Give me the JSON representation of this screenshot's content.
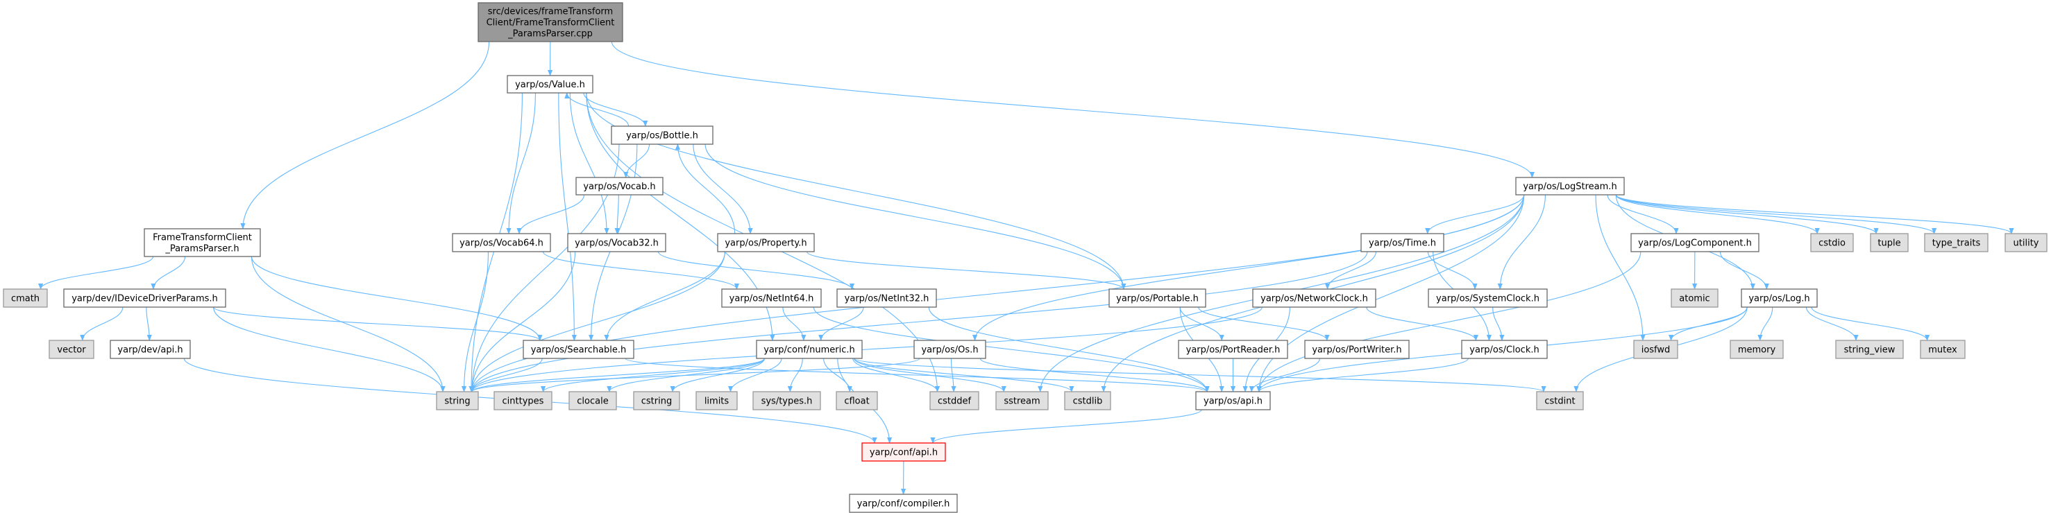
{
  "colors": {
    "edge": "#63b8ff",
    "root_fill": "#999999",
    "external_fill": "#e0e0e0",
    "error_border": "#ff0000",
    "error_fill": "#fff0f0"
  },
  "graph": {
    "nodes": [
      {
        "id": "cpp",
        "label": "src/devices/frameTransform\nClient/FrameTransformClient\n_ParamsParser.cpp",
        "kind": "root"
      },
      {
        "id": "value",
        "label": "yarp/os/Value.h",
        "kind": "normal"
      },
      {
        "id": "bottle",
        "label": "yarp/os/Bottle.h",
        "kind": "normal"
      },
      {
        "id": "vocab",
        "label": "yarp/os/Vocab.h",
        "kind": "normal"
      },
      {
        "id": "vocab64",
        "label": "yarp/os/Vocab64.h",
        "kind": "normal"
      },
      {
        "id": "vocab32",
        "label": "yarp/os/Vocab32.h",
        "kind": "normal"
      },
      {
        "id": "ftcph",
        "label": "FrameTransformClient\n_ParamsParser.h",
        "kind": "normal"
      },
      {
        "id": "cmath",
        "label": "cmath",
        "kind": "external"
      },
      {
        "id": "iddp",
        "label": "yarp/dev/IDeviceDriverParams.h",
        "kind": "normal"
      },
      {
        "id": "vector",
        "label": "vector",
        "kind": "external"
      },
      {
        "id": "devapi",
        "label": "yarp/dev/api.h",
        "kind": "normal"
      },
      {
        "id": "searchable",
        "label": "yarp/os/Searchable.h",
        "kind": "normal"
      },
      {
        "id": "string",
        "label": "string",
        "kind": "external"
      },
      {
        "id": "cinttypes",
        "label": "cinttypes",
        "kind": "external"
      },
      {
        "id": "clocale",
        "label": "clocale",
        "kind": "external"
      },
      {
        "id": "cstring",
        "label": "cstring",
        "kind": "external"
      },
      {
        "id": "property",
        "label": "yarp/os/Property.h",
        "kind": "normal"
      },
      {
        "id": "netint64",
        "label": "yarp/os/NetInt64.h",
        "kind": "normal"
      },
      {
        "id": "netint32",
        "label": "yarp/os/NetInt32.h",
        "kind": "normal"
      },
      {
        "id": "portable",
        "label": "yarp/os/Portable.h",
        "kind": "normal"
      },
      {
        "id": "netclock",
        "label": "yarp/os/NetworkClock.h",
        "kind": "normal"
      },
      {
        "id": "numeric",
        "label": "yarp/conf/numeric.h",
        "kind": "normal"
      },
      {
        "id": "os",
        "label": "yarp/os/Os.h",
        "kind": "normal"
      },
      {
        "id": "portreader",
        "label": "yarp/os/PortReader.h",
        "kind": "normal"
      },
      {
        "id": "portwriter",
        "label": "yarp/os/PortWriter.h",
        "kind": "normal"
      },
      {
        "id": "limits",
        "label": "limits",
        "kind": "external"
      },
      {
        "id": "systypes",
        "label": "sys/types.h",
        "kind": "external"
      },
      {
        "id": "cfloat",
        "label": "cfloat",
        "kind": "external"
      },
      {
        "id": "cstddef",
        "label": "cstddef",
        "kind": "external"
      },
      {
        "id": "sstream",
        "label": "sstream",
        "kind": "external"
      },
      {
        "id": "cstdlib",
        "label": "cstdlib",
        "kind": "external"
      },
      {
        "id": "osapi",
        "label": "yarp/os/api.h",
        "kind": "normal"
      },
      {
        "id": "confapi",
        "label": "yarp/conf/api.h",
        "kind": "error"
      },
      {
        "id": "compiler",
        "label": "yarp/conf/compiler.h",
        "kind": "normal"
      },
      {
        "id": "logstream",
        "label": "yarp/os/LogStream.h",
        "kind": "normal"
      },
      {
        "id": "time",
        "label": "yarp/os/Time.h",
        "kind": "normal"
      },
      {
        "id": "logcomp",
        "label": "yarp/os/LogComponent.h",
        "kind": "normal"
      },
      {
        "id": "cstdio",
        "label": "cstdio",
        "kind": "external"
      },
      {
        "id": "tuple",
        "label": "tuple",
        "kind": "external"
      },
      {
        "id": "typetraits",
        "label": "type_traits",
        "kind": "external"
      },
      {
        "id": "utility",
        "label": "utility",
        "kind": "external"
      },
      {
        "id": "sysclock",
        "label": "yarp/os/SystemClock.h",
        "kind": "normal"
      },
      {
        "id": "atomic",
        "label": "atomic",
        "kind": "external"
      },
      {
        "id": "log",
        "label": "yarp/os/Log.h",
        "kind": "normal"
      },
      {
        "id": "clock",
        "label": "yarp/os/Clock.h",
        "kind": "normal"
      },
      {
        "id": "iosfwd",
        "label": "iosfwd",
        "kind": "external"
      },
      {
        "id": "memory",
        "label": "memory",
        "kind": "external"
      },
      {
        "id": "stringview",
        "label": "string_view",
        "kind": "external"
      },
      {
        "id": "mutex",
        "label": "mutex",
        "kind": "external"
      },
      {
        "id": "cstdint",
        "label": "cstdint",
        "kind": "external"
      }
    ],
    "edges": [
      [
        "cpp",
        "value"
      ],
      [
        "cpp",
        "ftcph"
      ],
      [
        "cpp",
        "logstream"
      ],
      [
        "value",
        "bottle"
      ],
      [
        "value",
        "string"
      ],
      [
        "value",
        "vocab64"
      ],
      [
        "value",
        "vocab32"
      ],
      [
        "value",
        "searchable"
      ],
      [
        "value",
        "numeric"
      ],
      [
        "value",
        "cstddef"
      ],
      [
        "value",
        "portable"
      ],
      [
        "bottle",
        "value"
      ],
      [
        "bottle",
        "vocab"
      ],
      [
        "bottle",
        "string"
      ],
      [
        "bottle",
        "searchable"
      ],
      [
        "bottle",
        "property"
      ],
      [
        "bottle",
        "portable"
      ],
      [
        "property",
        "bottle"
      ],
      [
        "property",
        "searchable"
      ],
      [
        "property",
        "string"
      ],
      [
        "property",
        "portable"
      ],
      [
        "vocab",
        "vocab64"
      ],
      [
        "vocab",
        "vocab32"
      ],
      [
        "vocab64",
        "string"
      ],
      [
        "vocab64",
        "netint64"
      ],
      [
        "vocab32",
        "string"
      ],
      [
        "vocab32",
        "netint32"
      ],
      [
        "netint64",
        "numeric"
      ],
      [
        "netint64",
        "osapi"
      ],
      [
        "netint32",
        "numeric"
      ],
      [
        "netint32",
        "osapi"
      ],
      [
        "ftcph",
        "cmath"
      ],
      [
        "ftcph",
        "iddp"
      ],
      [
        "ftcph",
        "string"
      ],
      [
        "ftcph",
        "searchable"
      ],
      [
        "iddp",
        "vector"
      ],
      [
        "iddp",
        "devapi"
      ],
      [
        "iddp",
        "string"
      ],
      [
        "iddp",
        "searchable"
      ],
      [
        "devapi",
        "confapi"
      ],
      [
        "searchable",
        "string"
      ],
      [
        "searchable",
        "osapi"
      ],
      [
        "numeric",
        "string"
      ],
      [
        "numeric",
        "cinttypes"
      ],
      [
        "numeric",
        "clocale"
      ],
      [
        "numeric",
        "cstring"
      ],
      [
        "numeric",
        "limits"
      ],
      [
        "numeric",
        "systypes"
      ],
      [
        "numeric",
        "cfloat"
      ],
      [
        "numeric",
        "cstddef"
      ],
      [
        "numeric",
        "sstream"
      ],
      [
        "numeric",
        "cstdlib"
      ],
      [
        "numeric",
        "confapi"
      ],
      [
        "numeric",
        "cstdint"
      ],
      [
        "os",
        "string"
      ],
      [
        "os",
        "cstddef"
      ],
      [
        "os",
        "osapi"
      ],
      [
        "portable",
        "osapi"
      ],
      [
        "portable",
        "portreader"
      ],
      [
        "portable",
        "portwriter"
      ],
      [
        "portreader",
        "osapi"
      ],
      [
        "portwriter",
        "osapi"
      ],
      [
        "osapi",
        "confapi"
      ],
      [
        "confapi",
        "compiler"
      ],
      [
        "logstream",
        "string"
      ],
      [
        "logstream",
        "os"
      ],
      [
        "logstream",
        "sstream"
      ],
      [
        "logstream",
        "cstdlib"
      ],
      [
        "logstream",
        "time"
      ],
      [
        "logstream",
        "sysclock"
      ],
      [
        "logstream",
        "osapi"
      ],
      [
        "logstream",
        "iosfwd"
      ],
      [
        "logstream",
        "logcomp"
      ],
      [
        "logstream",
        "cstdio"
      ],
      [
        "logstream",
        "tuple"
      ],
      [
        "logstream",
        "typetraits"
      ],
      [
        "logstream",
        "utility"
      ],
      [
        "logstream",
        "log"
      ],
      [
        "time",
        "netclock"
      ],
      [
        "time",
        "sysclock"
      ],
      [
        "time",
        "clock"
      ],
      [
        "time",
        "string"
      ],
      [
        "netclock",
        "string"
      ],
      [
        "netclock",
        "clock"
      ],
      [
        "netclock",
        "osapi"
      ],
      [
        "sysclock",
        "clock"
      ],
      [
        "clock",
        "osapi"
      ],
      [
        "logcomp",
        "atomic"
      ],
      [
        "logcomp",
        "log"
      ],
      [
        "logcomp",
        "osapi"
      ],
      [
        "log",
        "iosfwd"
      ],
      [
        "log",
        "memory"
      ],
      [
        "log",
        "stringview"
      ],
      [
        "log",
        "mutex"
      ],
      [
        "log",
        "cstdint"
      ],
      [
        "log",
        "osapi"
      ]
    ]
  }
}
